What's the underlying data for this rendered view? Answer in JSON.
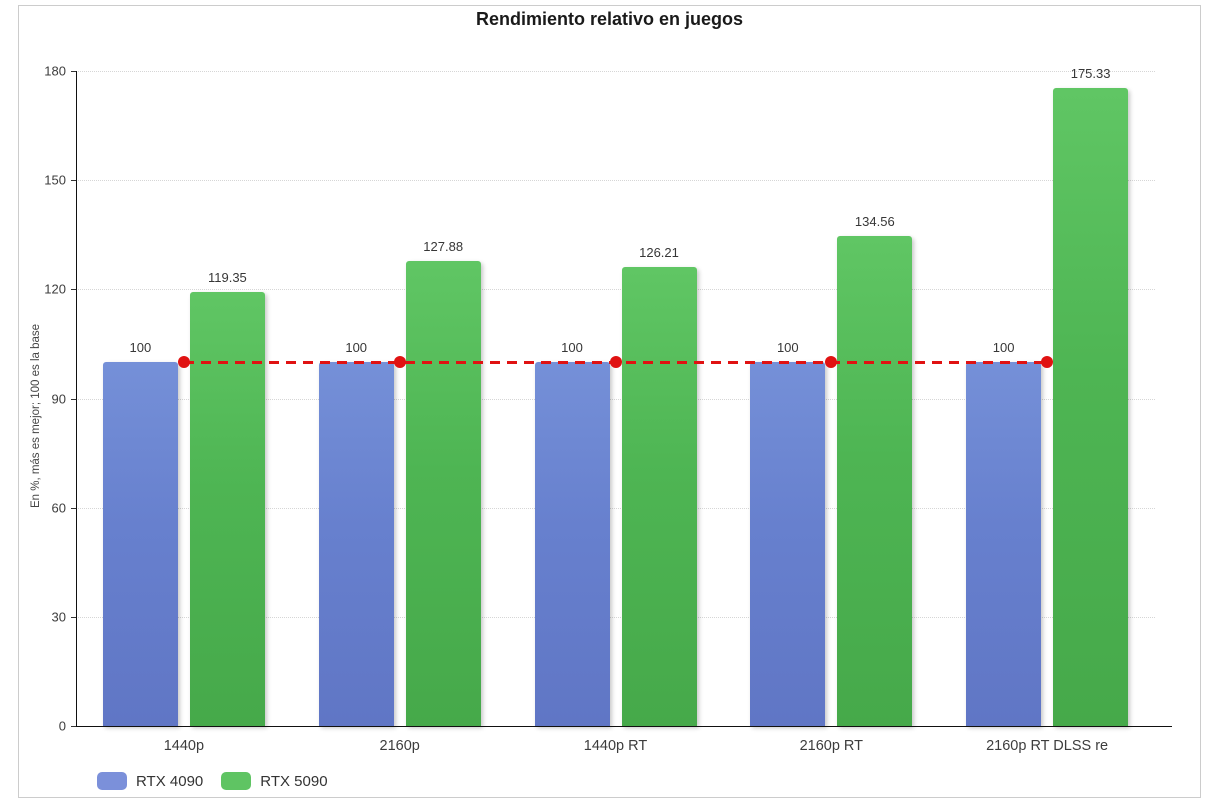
{
  "title": "Rendimiento relativo en juegos",
  "chart_data": {
    "type": "bar",
    "title": "Rendimiento relativo en juegos",
    "xlabel": "",
    "ylabel": "En %, más es mejor; 100 es la base",
    "ylim": [
      0,
      180
    ],
    "yticks": [
      0,
      30,
      60,
      90,
      120,
      150,
      180
    ],
    "grid": true,
    "legend_position": "bottom-left",
    "categories": [
      "1440p",
      "2160p",
      "1440p RT",
      "2160p RT",
      "2160p RT DLSS re"
    ],
    "series": [
      {
        "name": "RTX 4090",
        "color": "#6b84d0",
        "values": [
          100,
          100,
          100,
          100,
          100
        ],
        "value_labels": [
          "100",
          "100",
          "100",
          "100",
          "100"
        ]
      },
      {
        "name": "RTX 5090",
        "color": "#4fb453",
        "values": [
          119.35,
          127.88,
          126.21,
          134.56,
          175.33
        ],
        "value_labels": [
          "119.35",
          "127.88",
          "126.21",
          "134.56",
          "175.33"
        ]
      }
    ],
    "baseline": {
      "value": 100,
      "color": "#e01212",
      "style": "dashed",
      "markers_at_categories": true
    }
  },
  "colors": {
    "bar_blue": "#6b84d0",
    "bar_green": "#4fb453",
    "baseline_red": "#e01212",
    "gridline": "#d6d6d6",
    "container_border": "#cccccc",
    "text": "#3d3d3d"
  }
}
